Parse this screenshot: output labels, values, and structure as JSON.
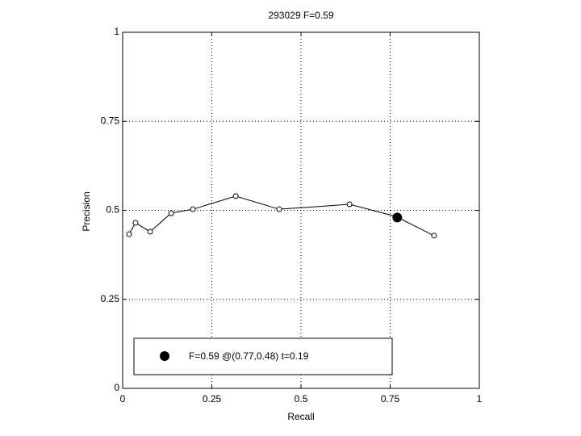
{
  "chart_data": {
    "type": "line",
    "title": "293029 F=0.59",
    "x_label": "Recall",
    "y_label": "Precision",
    "x": [
      0.018,
      0.036,
      0.077,
      0.136,
      0.197,
      0.317,
      0.439,
      0.636,
      0.765,
      0.873
    ],
    "values": [
      0.433,
      0.465,
      0.44,
      0.492,
      0.503,
      0.54,
      0.503,
      0.517,
      0.483,
      0.429
    ],
    "color": "#000000",
    "highlight": {
      "label": "F=0.59 @(0.77,0.48) t=0.19",
      "x": 0.77,
      "y": 0.48
    },
    "xlim": [
      0,
      1
    ],
    "ylim": [
      0,
      1
    ],
    "xticks": [
      0,
      0.25,
      0.5,
      0.75,
      1
    ],
    "yticks": [
      0,
      0.25,
      0.5,
      0.75,
      1
    ],
    "grid": true,
    "legend": "lower left"
  }
}
